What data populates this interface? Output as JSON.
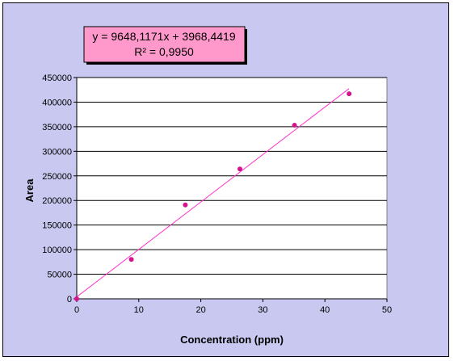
{
  "chart_data": {
    "type": "scatter",
    "title": "",
    "xlabel": "Concentration (ppm)",
    "ylabel": "Area",
    "xlim": [
      0,
      50
    ],
    "ylim": [
      0,
      450000
    ],
    "x_ticks": [
      "0",
      "10",
      "20",
      "30",
      "40",
      "50"
    ],
    "y_ticks": [
      "0",
      "50000",
      "100000",
      "150000",
      "200000",
      "250000",
      "300000",
      "350000",
      "400000",
      "450000"
    ],
    "grid": "horizontal",
    "legend": "none",
    "series": [
      {
        "points": [
          {
            "x": 0,
            "y": 0
          },
          {
            "x": 8.8,
            "y": 80000
          },
          {
            "x": 17.5,
            "y": 191000
          },
          {
            "x": 26.3,
            "y": 264000
          },
          {
            "x": 35.1,
            "y": 353000
          },
          {
            "x": 43.9,
            "y": 417000
          }
        ],
        "color": "#d4148c"
      }
    ],
    "trendline": {
      "slope": 9648.1171,
      "intercept": 3968.4419,
      "x_range": [
        0,
        43.9
      ],
      "color": "#ff33cc",
      "equation_label": "y = 9648,1171x + 3968,4419",
      "r2_label": "R² = 0,9950"
    },
    "colors": {
      "background": "#c8c8f0",
      "plot_area": "#ffffff",
      "label_box": "#ff99cc"
    }
  }
}
